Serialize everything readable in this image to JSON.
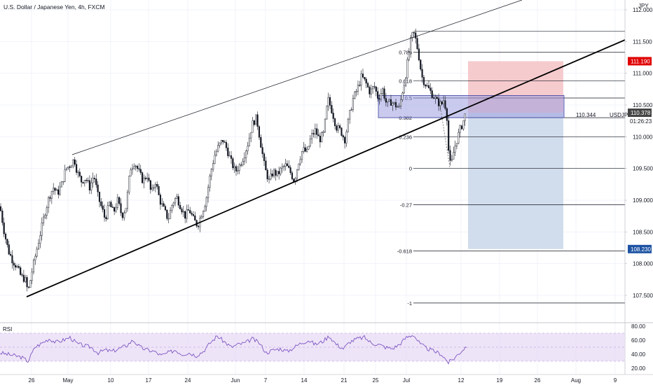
{
  "header": {
    "title": "U.S. Dollar / Japanese Yen, 4h, FXCM",
    "currency": "JPY"
  },
  "chart_data": {
    "type": "candlestick",
    "symbol": "USDJPY",
    "price_axis": {
      "ticks": [
        {
          "value": 107.5,
          "label": "107.500"
        },
        {
          "value": 108.0,
          "label": "108.000"
        },
        {
          "value": 108.5,
          "label": "108.500"
        },
        {
          "value": 109.0,
          "label": "109.000"
        },
        {
          "value": 109.5,
          "label": "109.500"
        },
        {
          "value": 110.0,
          "label": "110.000"
        },
        {
          "value": 110.5,
          "label": "110.500"
        },
        {
          "value": 111.0,
          "label": "111.000"
        },
        {
          "value": 111.5,
          "label": "111.500"
        },
        {
          "value": 112.0,
          "label": "112.000"
        }
      ],
      "range": [
        107.2,
        112.1
      ]
    },
    "time_axis": {
      "labels": [
        "26",
        "May",
        "10",
        "17",
        "24",
        "Jun",
        "7",
        "14",
        "21",
        "25",
        "Jul",
        "12",
        "19",
        "26",
        "Aug",
        "9"
      ]
    },
    "price_badges": [
      {
        "label": "111.190",
        "value": 111.19,
        "color": "#e00000"
      },
      {
        "label": "110.378",
        "value": 110.378,
        "color": "#444444"
      },
      {
        "label": "108.230",
        "value": 108.23,
        "color": "#1e53a3"
      }
    ],
    "symbol_label": {
      "name": "USDJPY",
      "price": "110.344",
      "countdown": "01:26:23"
    },
    "fibonacci": {
      "levels": [
        {
          "label": "0.786",
          "value": 111.33
        },
        {
          "label": "0.618",
          "value": 110.88
        },
        {
          "label": "0.5",
          "value": 110.61
        },
        {
          "label": "0.382",
          "value": 110.3
        },
        {
          "label": "0.236",
          "value": 110.0
        },
        {
          "label": "0",
          "value": 109.5
        },
        {
          "label": "-0.27",
          "value": 108.93
        },
        {
          "label": "-0.618",
          "value": 108.2
        },
        {
          "label": "-1",
          "value": 107.38
        }
      ],
      "top_value": 111.66
    },
    "position": {
      "entry": 110.378,
      "stop": 111.19,
      "target": 108.23
    },
    "rsi": {
      "label": "RSI",
      "ticks": [
        {
          "value": 80,
          "label": "80.00"
        },
        {
          "value": 60,
          "label": "60.00"
        },
        {
          "value": 40,
          "label": "40.00"
        },
        {
          "value": 20,
          "label": "20.00"
        }
      ],
      "band": [
        30,
        70
      ],
      "midline": 50
    },
    "price_path": [
      [
        0,
        108.9
      ],
      [
        6,
        108.5
      ],
      [
        12,
        108.2
      ],
      [
        18,
        108.05
      ],
      [
        24,
        107.95
      ],
      [
        30,
        107.8
      ],
      [
        36,
        107.75
      ],
      [
        40,
        107.55
      ],
      [
        46,
        107.9
      ],
      [
        52,
        108.2
      ],
      [
        58,
        108.5
      ],
      [
        64,
        108.8
      ],
      [
        70,
        109.05
      ],
      [
        76,
        109.2
      ],
      [
        82,
        109.1
      ],
      [
        88,
        109.25
      ],
      [
        94,
        109.5
      ],
      [
        100,
        109.55
      ],
      [
        106,
        109.65
      ],
      [
        110,
        109.45
      ],
      [
        116,
        109.3
      ],
      [
        122,
        109.35
      ],
      [
        128,
        109.2
      ],
      [
        134,
        109.4
      ],
      [
        140,
        109.05
      ],
      [
        146,
        108.85
      ],
      [
        150,
        108.7
      ],
      [
        156,
        108.95
      ],
      [
        162,
        108.8
      ],
      [
        168,
        109.0
      ],
      [
        174,
        108.75
      ],
      [
        180,
        108.9
      ],
      [
        186,
        109.5
      ],
      [
        192,
        109.6
      ],
      [
        198,
        109.45
      ],
      [
        204,
        109.3
      ],
      [
        210,
        109.4
      ],
      [
        216,
        109.1
      ],
      [
        222,
        109.3
      ],
      [
        228,
        109.0
      ],
      [
        234,
        108.85
      ],
      [
        240,
        108.7
      ],
      [
        246,
        108.95
      ],
      [
        252,
        109.05
      ],
      [
        258,
        108.9
      ],
      [
        264,
        108.75
      ],
      [
        270,
        108.85
      ],
      [
        276,
        108.7
      ],
      [
        282,
        108.6
      ],
      [
        288,
        108.8
      ],
      [
        294,
        109.0
      ],
      [
        300,
        109.4
      ],
      [
        306,
        109.7
      ],
      [
        312,
        109.85
      ],
      [
        318,
        109.95
      ],
      [
        324,
        109.8
      ],
      [
        330,
        109.6
      ],
      [
        336,
        109.45
      ],
      [
        342,
        109.55
      ],
      [
        348,
        109.7
      ],
      [
        354,
        109.9
      ],
      [
        360,
        110.2
      ],
      [
        366,
        110.3
      ],
      [
        372,
        109.9
      ],
      [
        378,
        109.5
      ],
      [
        384,
        109.3
      ],
      [
        390,
        109.45
      ],
      [
        396,
        109.4
      ],
      [
        402,
        109.5
      ],
      [
        408,
        109.55
      ],
      [
        414,
        109.45
      ],
      [
        420,
        109.3
      ],
      [
        426,
        109.6
      ],
      [
        432,
        109.8
      ],
      [
        438,
        109.75
      ],
      [
        444,
        110.0
      ],
      [
        450,
        110.1
      ],
      [
        456,
        109.95
      ],
      [
        462,
        110.05
      ],
      [
        468,
        110.6
      ],
      [
        474,
        110.4
      ],
      [
        480,
        110.15
      ],
      [
        486,
        110.1
      ],
      [
        492,
        109.95
      ],
      [
        498,
        110.3
      ],
      [
        504,
        110.6
      ],
      [
        510,
        110.75
      ],
      [
        516,
        110.95
      ],
      [
        522,
        110.85
      ],
      [
        528,
        110.7
      ],
      [
        534,
        110.8
      ],
      [
        540,
        110.6
      ],
      [
        546,
        110.75
      ],
      [
        552,
        110.5
      ],
      [
        558,
        110.55
      ],
      [
        564,
        110.5
      ],
      [
        570,
        110.45
      ],
      [
        574,
        110.7
      ],
      [
        578,
        110.9
      ],
      [
        582,
        111.2
      ],
      [
        586,
        111.5
      ],
      [
        590,
        111.65
      ],
      [
        594,
        111.5
      ],
      [
        598,
        111.25
      ],
      [
        602,
        110.95
      ],
      [
        606,
        110.85
      ],
      [
        612,
        110.75
      ],
      [
        618,
        110.65
      ],
      [
        624,
        110.55
      ],
      [
        630,
        110.5
      ],
      [
        634,
        110.6
      ],
      [
        638,
        110.3
      ],
      [
        641,
        109.6
      ],
      [
        644,
        109.55
      ],
      [
        648,
        109.8
      ],
      [
        652,
        109.95
      ],
      [
        656,
        110.1
      ],
      [
        660,
        110.2
      ],
      [
        664,
        110.35
      ],
      [
        666,
        110.34
      ]
    ],
    "rsi_path": [
      [
        0,
        42
      ],
      [
        10,
        40
      ],
      [
        20,
        38
      ],
      [
        30,
        36
      ],
      [
        40,
        30
      ],
      [
        50,
        50
      ],
      [
        60,
        56
      ],
      [
        70,
        62
      ],
      [
        80,
        57
      ],
      [
        90,
        60
      ],
      [
        100,
        64
      ],
      [
        110,
        55
      ],
      [
        120,
        52
      ],
      [
        130,
        50
      ],
      [
        140,
        42
      ],
      [
        150,
        46
      ],
      [
        160,
        44
      ],
      [
        170,
        48
      ],
      [
        180,
        52
      ],
      [
        190,
        60
      ],
      [
        200,
        50
      ],
      [
        210,
        46
      ],
      [
        220,
        44
      ],
      [
        230,
        38
      ],
      [
        240,
        42
      ],
      [
        250,
        46
      ],
      [
        260,
        40
      ],
      [
        270,
        42
      ],
      [
        280,
        38
      ],
      [
        290,
        44
      ],
      [
        300,
        56
      ],
      [
        310,
        66
      ],
      [
        320,
        58
      ],
      [
        330,
        50
      ],
      [
        340,
        54
      ],
      [
        350,
        56
      ],
      [
        360,
        62
      ],
      [
        370,
        56
      ],
      [
        380,
        42
      ],
      [
        390,
        46
      ],
      [
        400,
        48
      ],
      [
        410,
        44
      ],
      [
        420,
        50
      ],
      [
        430,
        56
      ],
      [
        440,
        60
      ],
      [
        450,
        54
      ],
      [
        460,
        58
      ],
      [
        470,
        66
      ],
      [
        480,
        54
      ],
      [
        490,
        48
      ],
      [
        500,
        58
      ],
      [
        510,
        62
      ],
      [
        520,
        64
      ],
      [
        530,
        56
      ],
      [
        540,
        54
      ],
      [
        550,
        50
      ],
      [
        560,
        48
      ],
      [
        570,
        54
      ],
      [
        580,
        64
      ],
      [
        590,
        68
      ],
      [
        600,
        54
      ],
      [
        610,
        48
      ],
      [
        620,
        44
      ],
      [
        630,
        40
      ],
      [
        640,
        28
      ],
      [
        648,
        34
      ],
      [
        656,
        42
      ],
      [
        666,
        52
      ]
    ]
  }
}
